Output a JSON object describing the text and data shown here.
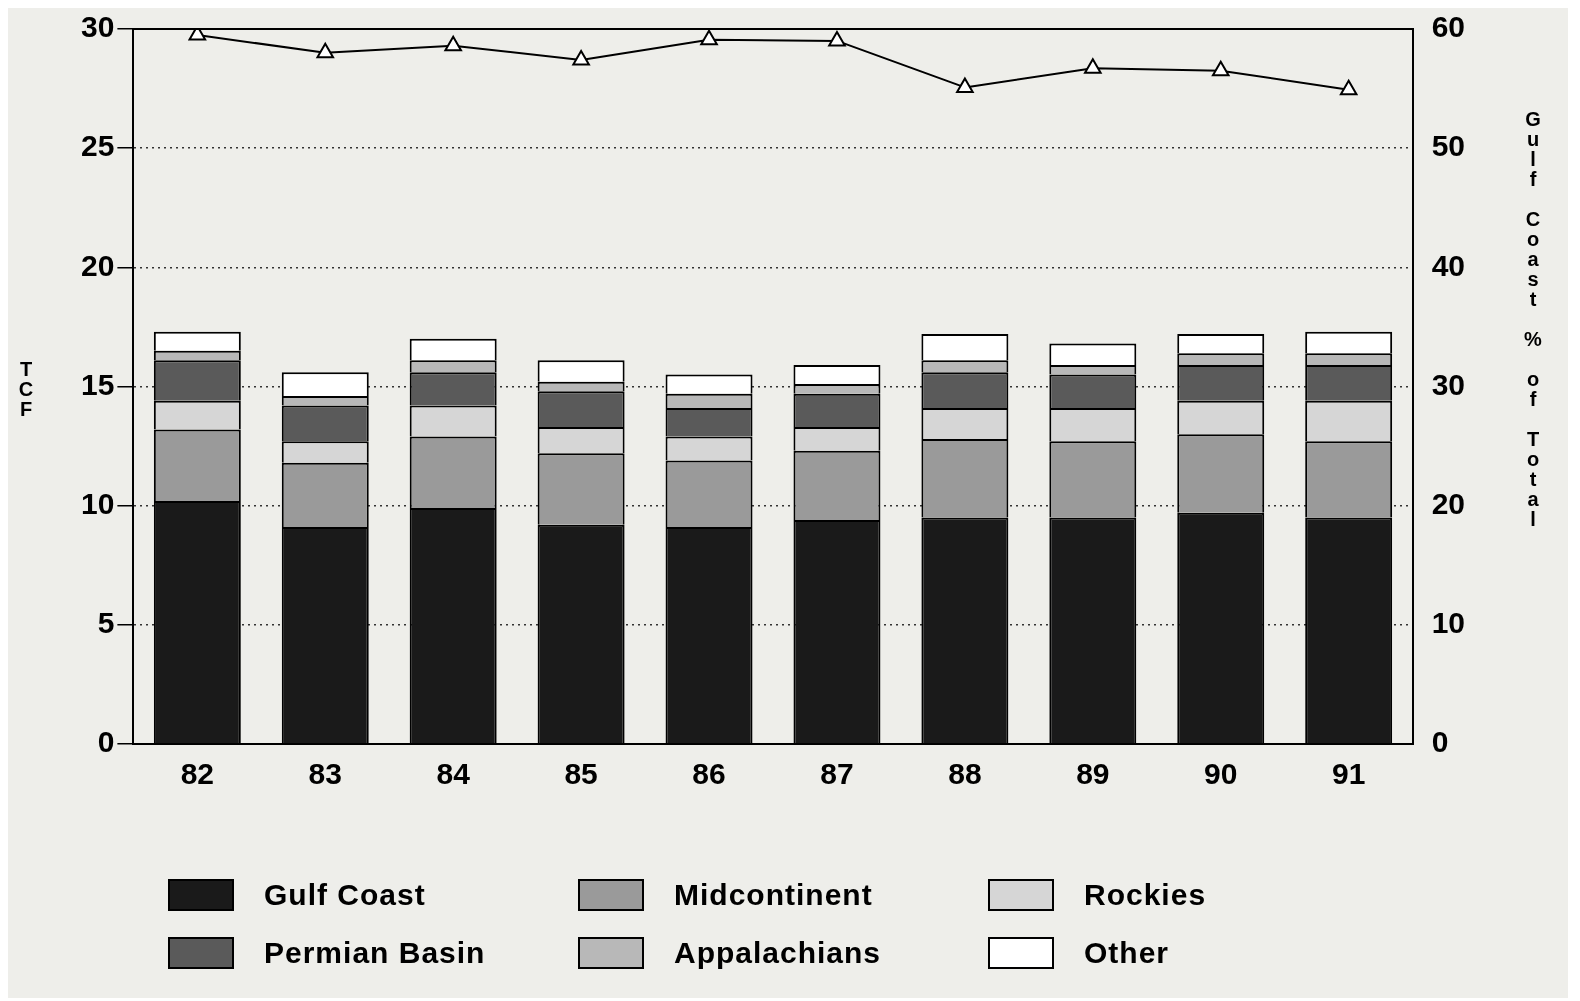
{
  "chart_data": {
    "type": "bar",
    "stacked": true,
    "categories": [
      "82",
      "83",
      "84",
      "85",
      "86",
      "87",
      "88",
      "89",
      "90",
      "91"
    ],
    "ylabel": "TCF",
    "y2label": "Gulf Coast % of Total",
    "ylim": [
      0,
      30
    ],
    "yticks": [
      0,
      5,
      10,
      15,
      20,
      25,
      30
    ],
    "y2lim": [
      0,
      60
    ],
    "y2ticks": [
      0,
      10,
      20,
      30,
      40,
      50,
      60
    ],
    "grid": "y",
    "legend": "bottom",
    "series": [
      {
        "name": "Gulf Coast",
        "color": "#1a1a1a",
        "values": [
          10.2,
          9.1,
          9.9,
          9.2,
          9.1,
          9.4,
          9.5,
          9.5,
          9.7,
          9.5
        ]
      },
      {
        "name": "Midcontinent",
        "color": "#9a9a9a",
        "values": [
          3.0,
          2.7,
          3.0,
          3.0,
          2.8,
          2.9,
          3.3,
          3.2,
          3.3,
          3.2
        ]
      },
      {
        "name": "Rockies",
        "color": "#d6d6d6",
        "values": [
          1.2,
          0.9,
          1.3,
          1.1,
          1.0,
          1.0,
          1.3,
          1.4,
          1.4,
          1.7
        ]
      },
      {
        "name": "Permian Basin",
        "color": "#5a5a5a",
        "values": [
          1.7,
          1.5,
          1.4,
          1.5,
          1.2,
          1.4,
          1.5,
          1.4,
          1.5,
          1.5
        ]
      },
      {
        "name": "Appalachians",
        "color": "#b8b8b8",
        "values": [
          0.4,
          0.4,
          0.5,
          0.4,
          0.6,
          0.4,
          0.5,
          0.4,
          0.5,
          0.5
        ]
      },
      {
        "name": "Other",
        "color": "#ffffff",
        "values": [
          0.8,
          1.0,
          0.9,
          0.9,
          0.8,
          0.8,
          1.1,
          0.9,
          0.8,
          0.9
        ]
      },
      {
        "type": "line",
        "axis": "y2",
        "color": "#000000",
        "marker": "triangle",
        "values": [
          59.5,
          58.0,
          58.6,
          57.4,
          59.1,
          59.0,
          55.1,
          56.7,
          56.5,
          54.9
        ]
      }
    ]
  }
}
